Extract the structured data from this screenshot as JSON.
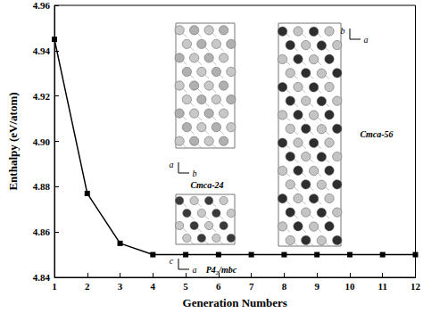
{
  "chart_data": {
    "type": "line",
    "x_label": "Generation Numbers",
    "y_label": "Enthalpy (eV/atom)",
    "x": [
      1,
      2,
      3,
      4,
      5,
      6,
      7,
      8,
      9,
      10,
      11,
      12
    ],
    "values": [
      4.945,
      4.877,
      4.855,
      4.85,
      4.85,
      4.85,
      4.85,
      4.85,
      4.85,
      4.85,
      4.85,
      4.85
    ],
    "color": "#000000",
    "marker": "square",
    "line_style": "solid",
    "grid": false,
    "xlim": [
      1,
      12
    ],
    "xticks": [
      1,
      2,
      3,
      4,
      5,
      6,
      7,
      8,
      9,
      10,
      11,
      12
    ],
    "ylim": [
      4.84,
      4.96
    ],
    "yticks": [
      4.84,
      4.86,
      4.88,
      {
        "value": 4.9,
        "label": "4.90"
      },
      4.92,
      4.94,
      4.96
    ],
    "annotations": [
      {
        "text": "Cmca-24",
        "axes": [
          "a",
          "b"
        ]
      },
      {
        "text": "P4₂/mbc",
        "axes": [
          "c",
          "a"
        ]
      },
      {
        "text": "Cmca-56",
        "axes": [
          "b",
          "a"
        ]
      }
    ]
  }
}
